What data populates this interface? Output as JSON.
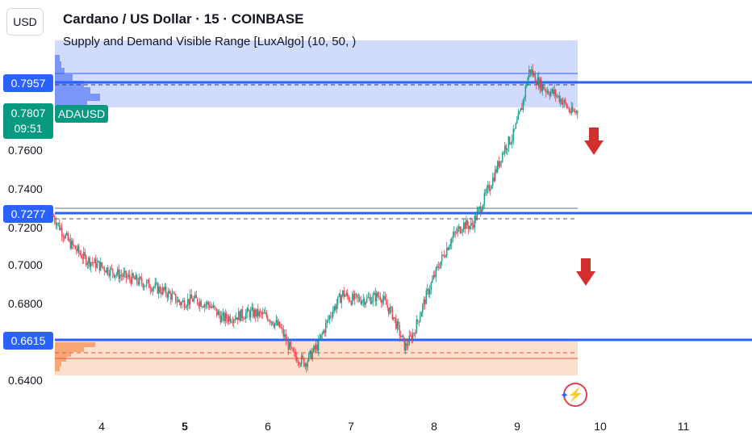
{
  "header": {
    "currency_button": "USD",
    "title": "Cardano / US Dollar · 15 · COINBASE",
    "indicator": "Supply and Demand Visible Range [LuxAlgo] (10, 50, )"
  },
  "price_tags": {
    "upper_level": "0.7957",
    "middle_level": "0.7277",
    "lower_level": "0.6615",
    "current_price": "0.7807",
    "countdown": "09:51",
    "symbol": "ADAUSD"
  },
  "colors": {
    "up": "#089981",
    "down": "#f23645",
    "level_line": "#2962ff",
    "supply_zone": "#c6d2fc",
    "demand_zone": "#fdd9c4",
    "arrow": "#d32f2f"
  },
  "chart_data": {
    "type": "candlestick",
    "symbol": "ADAUSD",
    "y_ticks": [
      "0.6400",
      "0.6800",
      "0.7000",
      "0.7200",
      "0.7400",
      "0.7600"
    ],
    "y_tick_values": [
      0.64,
      0.68,
      0.7,
      0.72,
      0.74,
      0.76
    ],
    "x_ticks": [
      "4",
      "5",
      "6",
      "7",
      "8",
      "9",
      "10",
      "11"
    ],
    "x_tick_values": [
      4,
      5,
      6,
      7,
      8,
      9,
      10,
      11
    ],
    "x_bold_tick": "5",
    "ylim": [
      0.625,
      0.83
    ],
    "xlim": [
      3.4,
      11.9
    ],
    "price_path": [
      [
        3.42,
        0.726
      ],
      [
        3.6,
        0.713
      ],
      [
        3.8,
        0.704
      ],
      [
        4.0,
        0.7
      ],
      [
        4.2,
        0.696
      ],
      [
        4.4,
        0.693
      ],
      [
        4.6,
        0.69
      ],
      [
        4.8,
        0.686
      ],
      [
        4.95,
        0.681
      ],
      [
        5.1,
        0.683
      ],
      [
        5.3,
        0.68
      ],
      [
        5.45,
        0.673
      ],
      [
        5.6,
        0.674
      ],
      [
        5.8,
        0.676
      ],
      [
        6.0,
        0.674
      ],
      [
        6.15,
        0.668
      ],
      [
        6.3,
        0.654
      ],
      [
        6.45,
        0.65
      ],
      [
        6.6,
        0.659
      ],
      [
        6.75,
        0.675
      ],
      [
        6.9,
        0.686
      ],
      [
        7.0,
        0.683
      ],
      [
        7.2,
        0.683
      ],
      [
        7.35,
        0.685
      ],
      [
        7.5,
        0.675
      ],
      [
        7.65,
        0.658
      ],
      [
        7.75,
        0.665
      ],
      [
        7.9,
        0.684
      ],
      [
        8.05,
        0.7
      ],
      [
        8.2,
        0.714
      ],
      [
        8.35,
        0.722
      ],
      [
        8.45,
        0.721
      ],
      [
        8.55,
        0.73
      ],
      [
        8.7,
        0.745
      ],
      [
        8.85,
        0.762
      ],
      [
        8.95,
        0.768
      ],
      [
        9.05,
        0.782
      ],
      [
        9.15,
        0.803
      ],
      [
        9.25,
        0.796
      ],
      [
        9.35,
        0.792
      ],
      [
        9.45,
        0.79
      ],
      [
        9.55,
        0.786
      ],
      [
        9.65,
        0.78
      ],
      [
        9.73,
        0.781
      ]
    ],
    "levels": [
      0.7957,
      0.7277,
      0.6615
    ],
    "supply_zone": [
      0.787,
      0.821
    ],
    "demand_zone": [
      0.645,
      0.661
    ],
    "arrows": [
      "down",
      "down"
    ]
  }
}
